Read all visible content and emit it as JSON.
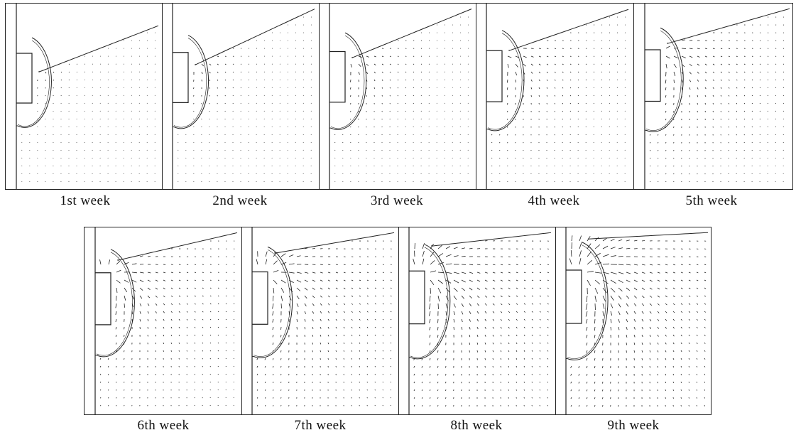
{
  "figure": {
    "rows": [
      {
        "panels": [
          {
            "label": "1st week",
            "stage": 1
          },
          {
            "label": "2nd week",
            "stage": 2
          },
          {
            "label": "3rd week",
            "stage": 3
          },
          {
            "label": "4th week",
            "stage": 4
          },
          {
            "label": "5th week",
            "stage": 5
          }
        ]
      },
      {
        "panels": [
          {
            "label": "6th week",
            "stage": 6
          },
          {
            "label": "7th week",
            "stage": 7
          },
          {
            "label": "8th week",
            "stage": 8
          },
          {
            "label": "9th week",
            "stage": 9
          }
        ]
      }
    ]
  },
  "colors": {
    "ink": "#222222",
    "background": "#ffffff"
  }
}
